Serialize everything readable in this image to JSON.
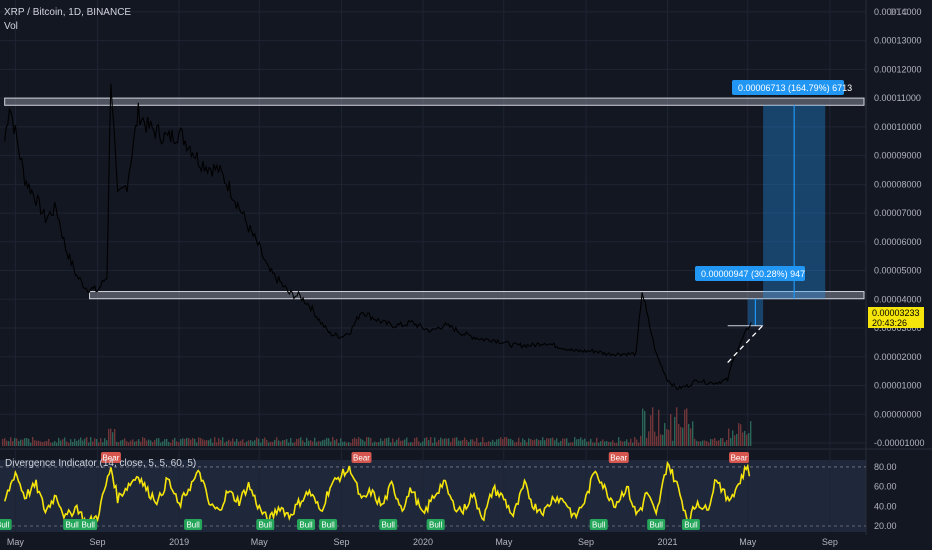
{
  "header": {
    "symbol_line": "XRP / Bitcoin, 1D, BINANCE",
    "vol_label": "Vol"
  },
  "price_axis": {
    "currency": "BTC",
    "ticks": [
      "0.00014000",
      "0.00013000",
      "0.00012000",
      "0.00011000",
      "0.00010000",
      "0.00009000",
      "0.00008000",
      "0.00007000",
      "0.00006000",
      "0.00005000",
      "0.00004000",
      "0.00003000",
      "0.00002000",
      "0.00001000",
      "0.00000000",
      "-0.00001000"
    ],
    "current_price": "0.00003233",
    "countdown": "20:43:26"
  },
  "time_axis": {
    "ticks": [
      "May",
      "Sep",
      "2019",
      "May",
      "Sep",
      "2020",
      "May",
      "Sep",
      "2021",
      "May",
      "Sep"
    ]
  },
  "indicator": {
    "title": "Divergence Indicator (14, close, 5, 5, 60, 5)",
    "ticks": [
      "80.00",
      "60.00",
      "40.00",
      "20.00"
    ],
    "bull_label": "Bull",
    "bear_label": "Bear"
  },
  "annotations": {
    "measure_upper": "0.00006713 (164.79%) 6713",
    "measure_lower": "0.00000947 (30.28%) 947"
  },
  "colors": {
    "background": "#131722",
    "price_line": "#000000",
    "rsi_line": "#f5e50b",
    "bull": "#26a65b",
    "bear": "#d4564e",
    "measure": "#2196f3",
    "current_price_tag": "#f5e50b"
  },
  "chart_data": {
    "type": "line",
    "series": [
      {
        "values_kind": "price_btc",
        "x": [
          "2018-04-15",
          "2018-04-22",
          "2018-05-01",
          "2018-05-15",
          "2018-06-01",
          "2018-06-15",
          "2018-07-01",
          "2018-07-15",
          "2018-08-01",
          "2018-08-15",
          "2018-09-01",
          "2018-09-15",
          "2018-09-21",
          "2018-10-01",
          "2018-10-15",
          "2018-11-01",
          "2018-11-15",
          "2018-12-01",
          "2018-12-15",
          "2019-01-01",
          "2019-01-15",
          "2019-02-01",
          "2019-02-15",
          "2019-03-01",
          "2019-03-15",
          "2019-04-01",
          "2019-04-15",
          "2019-05-01",
          "2019-05-15",
          "2019-06-01",
          "2019-06-15",
          "2019-07-01",
          "2019-07-15",
          "2019-08-01",
          "2019-08-15",
          "2019-09-01",
          "2019-09-15",
          "2019-10-01",
          "2019-10-15",
          "2019-11-01",
          "2019-11-15",
          "2019-12-01",
          "2019-12-15",
          "2020-01-01",
          "2020-01-15",
          "2020-02-01",
          "2020-02-15",
          "2020-03-01",
          "2020-03-15",
          "2020-04-01",
          "2020-04-15",
          "2020-05-01",
          "2020-05-15",
          "2020-06-01",
          "2020-06-15",
          "2020-07-01",
          "2020-07-15",
          "2020-08-01",
          "2020-08-15",
          "2020-09-01",
          "2020-09-15",
          "2020-10-01",
          "2020-10-15",
          "2020-11-01",
          "2020-11-15",
          "2020-11-24",
          "2020-12-01",
          "2020-12-15",
          "2021-01-01",
          "2021-01-15",
          "2021-02-01",
          "2021-02-15",
          "2021-03-01",
          "2021-03-15",
          "2021-04-01",
          "2021-04-10",
          "2021-04-15",
          "2021-04-25",
          "2021-05-01",
          "2021-05-06"
        ],
        "values": [
          9.5e-05,
          0.000108,
          9.8e-05,
          8.2e-05,
          7.5e-05,
          6.8e-05,
          7.2e-05,
          5.8e-05,
          4.8e-05,
          4.4e-05,
          4.3e-05,
          4.8e-05,
          0.000118,
          7.5e-05,
          8e-05,
          0.000105,
          0.0001,
          9.8e-05,
          9.6e-05,
          9.8e-05,
          9.4e-05,
          8.8e-05,
          8.6e-05,
          8.5e-05,
          8e-05,
          7.2e-05,
          6.5e-05,
          5.8e-05,
          5e-05,
          4.6e-05,
          4.2e-05,
          4.1e-05,
          3.8e-05,
          3.2e-05,
          2.8e-05,
          2.7e-05,
          2.9e-05,
          3.6e-05,
          3.4e-05,
          3.2e-05,
          3.1e-05,
          3.1e-05,
          3.2e-05,
          3e-05,
          2.9e-05,
          3.1e-05,
          3e-05,
          2.8e-05,
          2.7e-05,
          2.6e-05,
          2.6e-05,
          2.5e-05,
          2.4e-05,
          2.4e-05,
          2.4e-05,
          2.5e-05,
          2.4e-05,
          2.3e-05,
          2.2e-05,
          2.2e-05,
          2.2e-05,
          2.1e-05,
          2.1e-05,
          2.1e-05,
          2.1e-05,
          4.3e-05,
          3.5e-05,
          2.1e-05,
          1.2e-05,
          9e-06,
          1e-05,
          1.2e-05,
          1.1e-05,
          1.1e-05,
          1.2e-05,
          2e-05,
          2.2e-05,
          2.7e-05,
          3e-05,
          3.2e-05
        ]
      },
      {
        "values_kind": "divergence_rsi",
        "x": [
          "2018-04-15",
          "2018-05-01",
          "2018-05-15",
          "2018-06-01",
          "2018-06-15",
          "2018-07-01",
          "2018-07-15",
          "2018-08-01",
          "2018-08-15",
          "2018-09-01",
          "2018-09-21",
          "2018-10-01",
          "2018-10-15",
          "2018-11-01",
          "2018-11-15",
          "2018-12-01",
          "2018-12-15",
          "2019-01-01",
          "2019-01-15",
          "2019-02-01",
          "2019-02-15",
          "2019-03-01",
          "2019-03-15",
          "2019-04-01",
          "2019-04-15",
          "2019-05-01",
          "2019-05-15",
          "2019-06-01",
          "2019-06-15",
          "2019-07-01",
          "2019-07-15",
          "2019-08-01",
          "2019-08-15",
          "2019-09-01",
          "2019-09-15",
          "2019-10-01",
          "2019-10-15",
          "2019-11-01",
          "2019-11-15",
          "2019-12-01",
          "2019-12-15",
          "2020-01-01",
          "2020-01-15",
          "2020-02-01",
          "2020-02-15",
          "2020-03-01",
          "2020-03-15",
          "2020-04-01",
          "2020-04-15",
          "2020-05-01",
          "2020-05-15",
          "2020-06-01",
          "2020-06-15",
          "2020-07-01",
          "2020-07-15",
          "2020-08-01",
          "2020-08-15",
          "2020-09-01",
          "2020-09-15",
          "2020-10-01",
          "2020-10-15",
          "2020-11-01",
          "2020-11-15",
          "2020-11-24",
          "2020-12-01",
          "2020-12-15",
          "2021-01-01",
          "2021-01-15",
          "2021-02-01",
          "2021-02-15",
          "2021-03-01",
          "2021-03-15",
          "2021-04-01",
          "2021-04-15",
          "2021-05-01",
          "2021-05-06"
        ],
        "values": [
          45,
          75,
          50,
          62,
          35,
          52,
          28,
          40,
          22,
          30,
          80,
          48,
          60,
          72,
          55,
          45,
          68,
          40,
          58,
          75,
          42,
          35,
          55,
          45,
          62,
          38,
          25,
          40,
          30,
          45,
          55,
          35,
          60,
          72,
          78,
          45,
          55,
          40,
          62,
          38,
          58,
          30,
          48,
          65,
          42,
          35,
          52,
          28,
          58,
          48,
          30,
          62,
          40,
          35,
          50,
          45,
          28,
          48,
          78,
          55,
          42,
          60,
          32,
          40,
          55,
          30,
          85,
          62,
          25,
          45,
          35,
          70,
          45,
          60,
          82,
          68
        ]
      }
    ],
    "price_ylim": [
      -1e-05,
      0.000141
    ],
    "indicator_ylim": [
      20,
      85
    ],
    "horizontal_zones": [
      {
        "low": 0.0001075,
        "high": 0.00011
      },
      {
        "low": 4.02e-05,
        "high": 4.27e-05
      }
    ]
  }
}
